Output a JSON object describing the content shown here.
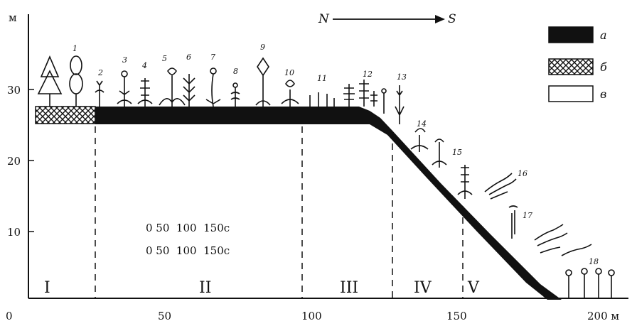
{
  "axes": {
    "y_unit": "м",
    "x_unit": "м",
    "y_ticks": [
      "30",
      "20",
      "10"
    ],
    "x_ticks": [
      "0",
      "50",
      "100",
      "150",
      "200 м"
    ]
  },
  "direction": {
    "from": "N",
    "to": "S"
  },
  "legend": [
    {
      "letter": "а",
      "fill": "solid"
    },
    {
      "letter": "б",
      "fill": "crosshatch"
    },
    {
      "letter": "в",
      "fill": "empty"
    }
  ],
  "scale_text": [
    "0 50  100  150с",
    "0 50  100  150с"
  ],
  "zones": [
    "I",
    "II",
    "III",
    "IV",
    "V"
  ],
  "plant_numbers": [
    "1",
    "2",
    "3",
    "4",
    "5",
    "6",
    "7",
    "8",
    "9",
    "10",
    "11",
    "12",
    "13",
    "14",
    "15",
    "16",
    "17",
    "18"
  ],
  "colors": {
    "ink": "#111111",
    "paper": "#ffffff"
  }
}
